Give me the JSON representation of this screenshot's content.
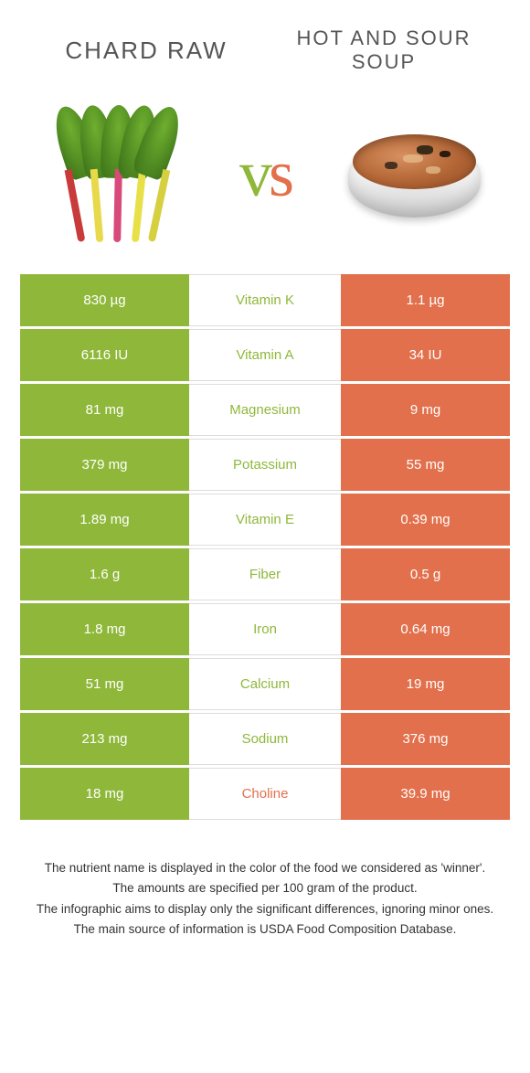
{
  "header": {
    "left_title": "chard raw",
    "right_title": "hot and sour soup"
  },
  "vs_label": {
    "v": "v",
    "s": "s"
  },
  "colors": {
    "left_bg": "#8fb83a",
    "right_bg": "#e2704c",
    "left_text": "#8fb83a",
    "right_text": "#e2704c",
    "cell_text": "#ffffff",
    "border": "#dddddd",
    "footer_text": "#333333"
  },
  "chard_stems": [
    "#c93a3a",
    "#e8d94a",
    "#d84a7a",
    "#e8e048",
    "#d6cf3f"
  ],
  "rows": [
    {
      "left": "830 µg",
      "mid": "Vitamin K",
      "right": "1.1 µg",
      "winner": "left"
    },
    {
      "left": "6116 IU",
      "mid": "Vitamin A",
      "right": "34 IU",
      "winner": "left"
    },
    {
      "left": "81 mg",
      "mid": "Magnesium",
      "right": "9 mg",
      "winner": "left"
    },
    {
      "left": "379 mg",
      "mid": "Potassium",
      "right": "55 mg",
      "winner": "left"
    },
    {
      "left": "1.89 mg",
      "mid": "Vitamin E",
      "right": "0.39 mg",
      "winner": "left"
    },
    {
      "left": "1.6 g",
      "mid": "Fiber",
      "right": "0.5 g",
      "winner": "left"
    },
    {
      "left": "1.8 mg",
      "mid": "Iron",
      "right": "0.64 mg",
      "winner": "left"
    },
    {
      "left": "51 mg",
      "mid": "Calcium",
      "right": "19 mg",
      "winner": "left"
    },
    {
      "left": "213 mg",
      "mid": "Sodium",
      "right": "376 mg",
      "winner": "left"
    },
    {
      "left": "18 mg",
      "mid": "Choline",
      "right": "39.9 mg",
      "winner": "right"
    }
  ],
  "footer": {
    "line1": "The nutrient name is displayed in the color of the food we considered as 'winner'.",
    "line2": "The amounts are specified per 100 gram of the product.",
    "line3": "The infographic aims to display only the significant differences, ignoring minor ones.",
    "line4": "The main source of information is USDA Food Composition Database."
  }
}
